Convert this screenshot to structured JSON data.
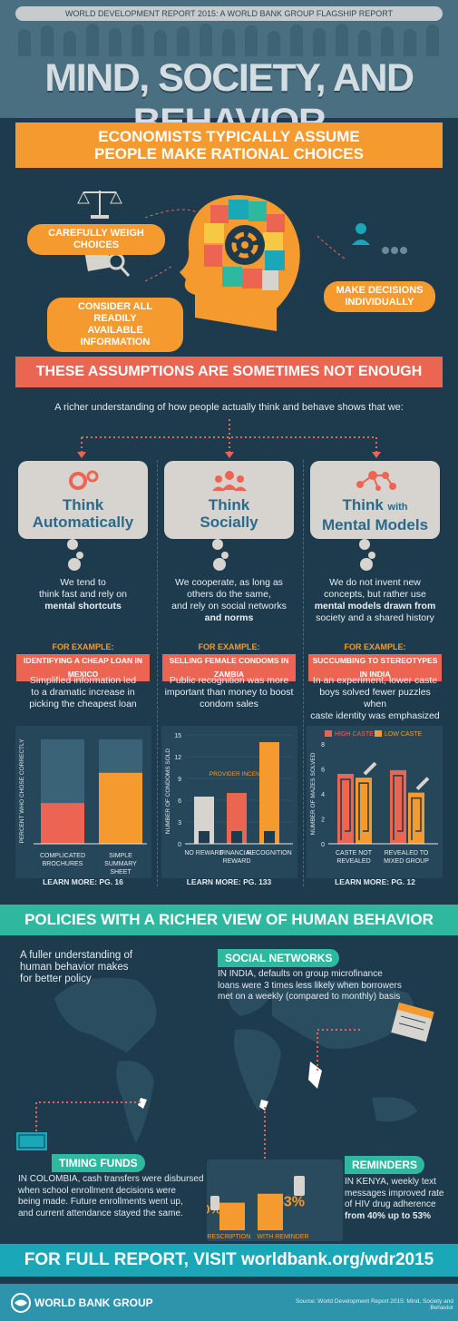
{
  "header": {
    "strip": "WORLD DEVELOPMENT REPORT 2015: A WORLD BANK GROUP FLAGSHIP REPORT",
    "title": "MIND, SOCIETY, AND BEHAVIOR"
  },
  "assume": {
    "title_line1": "ECONOMISTS TYPICALLY ASSUME",
    "title_line2": "PEOPLE MAKE RATIONAL CHOICES",
    "weigh": "CAREFULLY WEIGH CHOICES",
    "consider_line1": "CONSIDER ALL READILY",
    "consider_line2": "AVAILABLE INFORMATION",
    "decide_line1": "MAKE DECISIONS",
    "decide_line2": "INDIVIDUALLY"
  },
  "notenough": {
    "title": "THESE ASSUMPTIONS ARE SOMETIMES NOT ENOUGH",
    "intro": "A richer understanding of how people actually think and behave shows that we:"
  },
  "columns": [
    {
      "title1": "Think",
      "title2": "Automatically",
      "desc1": "We tend to",
      "desc2": "think fast and rely on",
      "desc3": "mental shortcuts",
      "example_label": "FOR EXAMPLE:",
      "example": "IDENTIFYING A CHEAP LOAN IN MEXICO",
      "detail1": "Simplified information led",
      "detail2": "to a dramatic increase in",
      "detail3": "picking the cheapest loan",
      "learn": "LEARN MORE: PG. 16"
    },
    {
      "title1": "Think",
      "title2": "Socially",
      "desc1": "We cooperate, as long as",
      "desc2": "others do the same,",
      "desc3": "and rely on social networks",
      "desc4": "and norms",
      "example_label": "FOR EXAMPLE:",
      "example": "SELLING FEMALE CONDOMS IN ZAMBIA",
      "detail1": "Public recognition was more",
      "detail2": "important than money to boost",
      "detail3": "condom sales",
      "learn": "LEARN MORE: PG. 133"
    },
    {
      "title1": "Think",
      "title1b": "with",
      "title2": "Mental Models",
      "desc1": "We do not invent new",
      "desc2": "concepts, but rather use",
      "desc3": "mental models drawn from",
      "desc4": "society and a shared history",
      "example_label": "FOR EXAMPLE:",
      "example": "SUCCUMBING TO STEREOTYPES IN INDIA",
      "detail1": "In an experiment, lower caste",
      "detail2": "boys solved fewer puzzles when",
      "detail3": "caste identity was emphasized",
      "learn": "LEARN MORE: PG. 12"
    }
  ],
  "chart_data": [
    {
      "type": "bar",
      "categories": [
        "COMPLICATED BROCHURES",
        "SIMPLE SUMMARY SHEET"
      ],
      "values": [
        39,
        68
      ],
      "value_labels": [
        "39%",
        "68%"
      ],
      "ylabel": "PERCENT WHO CHOSE CORRECTLY",
      "ylim": [
        0,
        100
      ],
      "colors": [
        "#ec6553",
        "#f59a2f"
      ]
    },
    {
      "type": "bar",
      "categories": [
        "NO REWARD",
        "FINANCIAL REWARD",
        "RECOGNITION"
      ],
      "values": [
        6.5,
        7,
        14
      ],
      "ylabel": "NUMBER OF CONDOMS SOLD",
      "yticks": [
        0,
        3,
        6,
        9,
        12,
        15
      ],
      "ylim": [
        0,
        15
      ],
      "annotation": "PROVIDER INCENTIVE",
      "colors": [
        "#d7d4cf",
        "#ec6553",
        "#f59a2f"
      ]
    },
    {
      "type": "bar",
      "categories": [
        "CASTE NOT REVEALED",
        "REVEALED TO MIXED GROUP"
      ],
      "series": [
        {
          "name": "HIGH CASTE",
          "values": [
            5.6,
            5.9
          ],
          "color": "#ec6553"
        },
        {
          "name": "LOW CASTE",
          "values": [
            5.3,
            4.1
          ],
          "color": "#f59a2f"
        }
      ],
      "ylabel": "NUMBER OF MAZES SOLVED",
      "yticks": [
        0,
        2,
        4,
        6,
        8
      ],
      "ylim": [
        0,
        8
      ],
      "legend": "top"
    },
    {
      "type": "bar",
      "categories": [
        "PRESCRIPTION",
        "WITH REMINDER"
      ],
      "values": [
        40,
        53
      ],
      "value_labels": [
        "40%",
        "53%"
      ],
      "colors": [
        "#f59a2f",
        "#f59a2f"
      ]
    }
  ],
  "policies": {
    "title": "POLICIES WITH A RICHER VIEW OF HUMAN BEHAVIOR",
    "fuller1": "A fuller understanding of",
    "fuller2": "human behavior makes",
    "fuller3": "for better policy",
    "social_title": "SOCIAL NETWORKS",
    "social1": "IN INDIA, defaults on group microfinance",
    "social2": "loans were 3 times less likely when borrowers",
    "social3": "met on a weekly (compared to monthly) basis",
    "timing_title": "TIMING FUNDS",
    "timing1": "IN COLOMBIA, cash transfers were disbursed",
    "timing2": "when school enrollment decisions were",
    "timing3": "being made. Future enrollments went up,",
    "timing4": "and current attendance stayed the same.",
    "rem_title": "REMINDERS",
    "rem1": "IN KENYA, weekly text",
    "rem2": "messages improved rate",
    "rem3": "of HIV drug adherence",
    "rem4": "from 40% up to 53%"
  },
  "footer": {
    "visit": "FOR FULL REPORT, VISIT worldbank.org/wdr2015",
    "logo": "WORLD BANK GROUP",
    "source": "Source: World Development Report 2015: Mind, Society and Behavior"
  },
  "colors": {
    "navy": "#1d3b4d",
    "orange": "#f59a2f",
    "coral": "#ec6553",
    "teal": "#2eb8a0",
    "cyan": "#1aa7b8"
  }
}
